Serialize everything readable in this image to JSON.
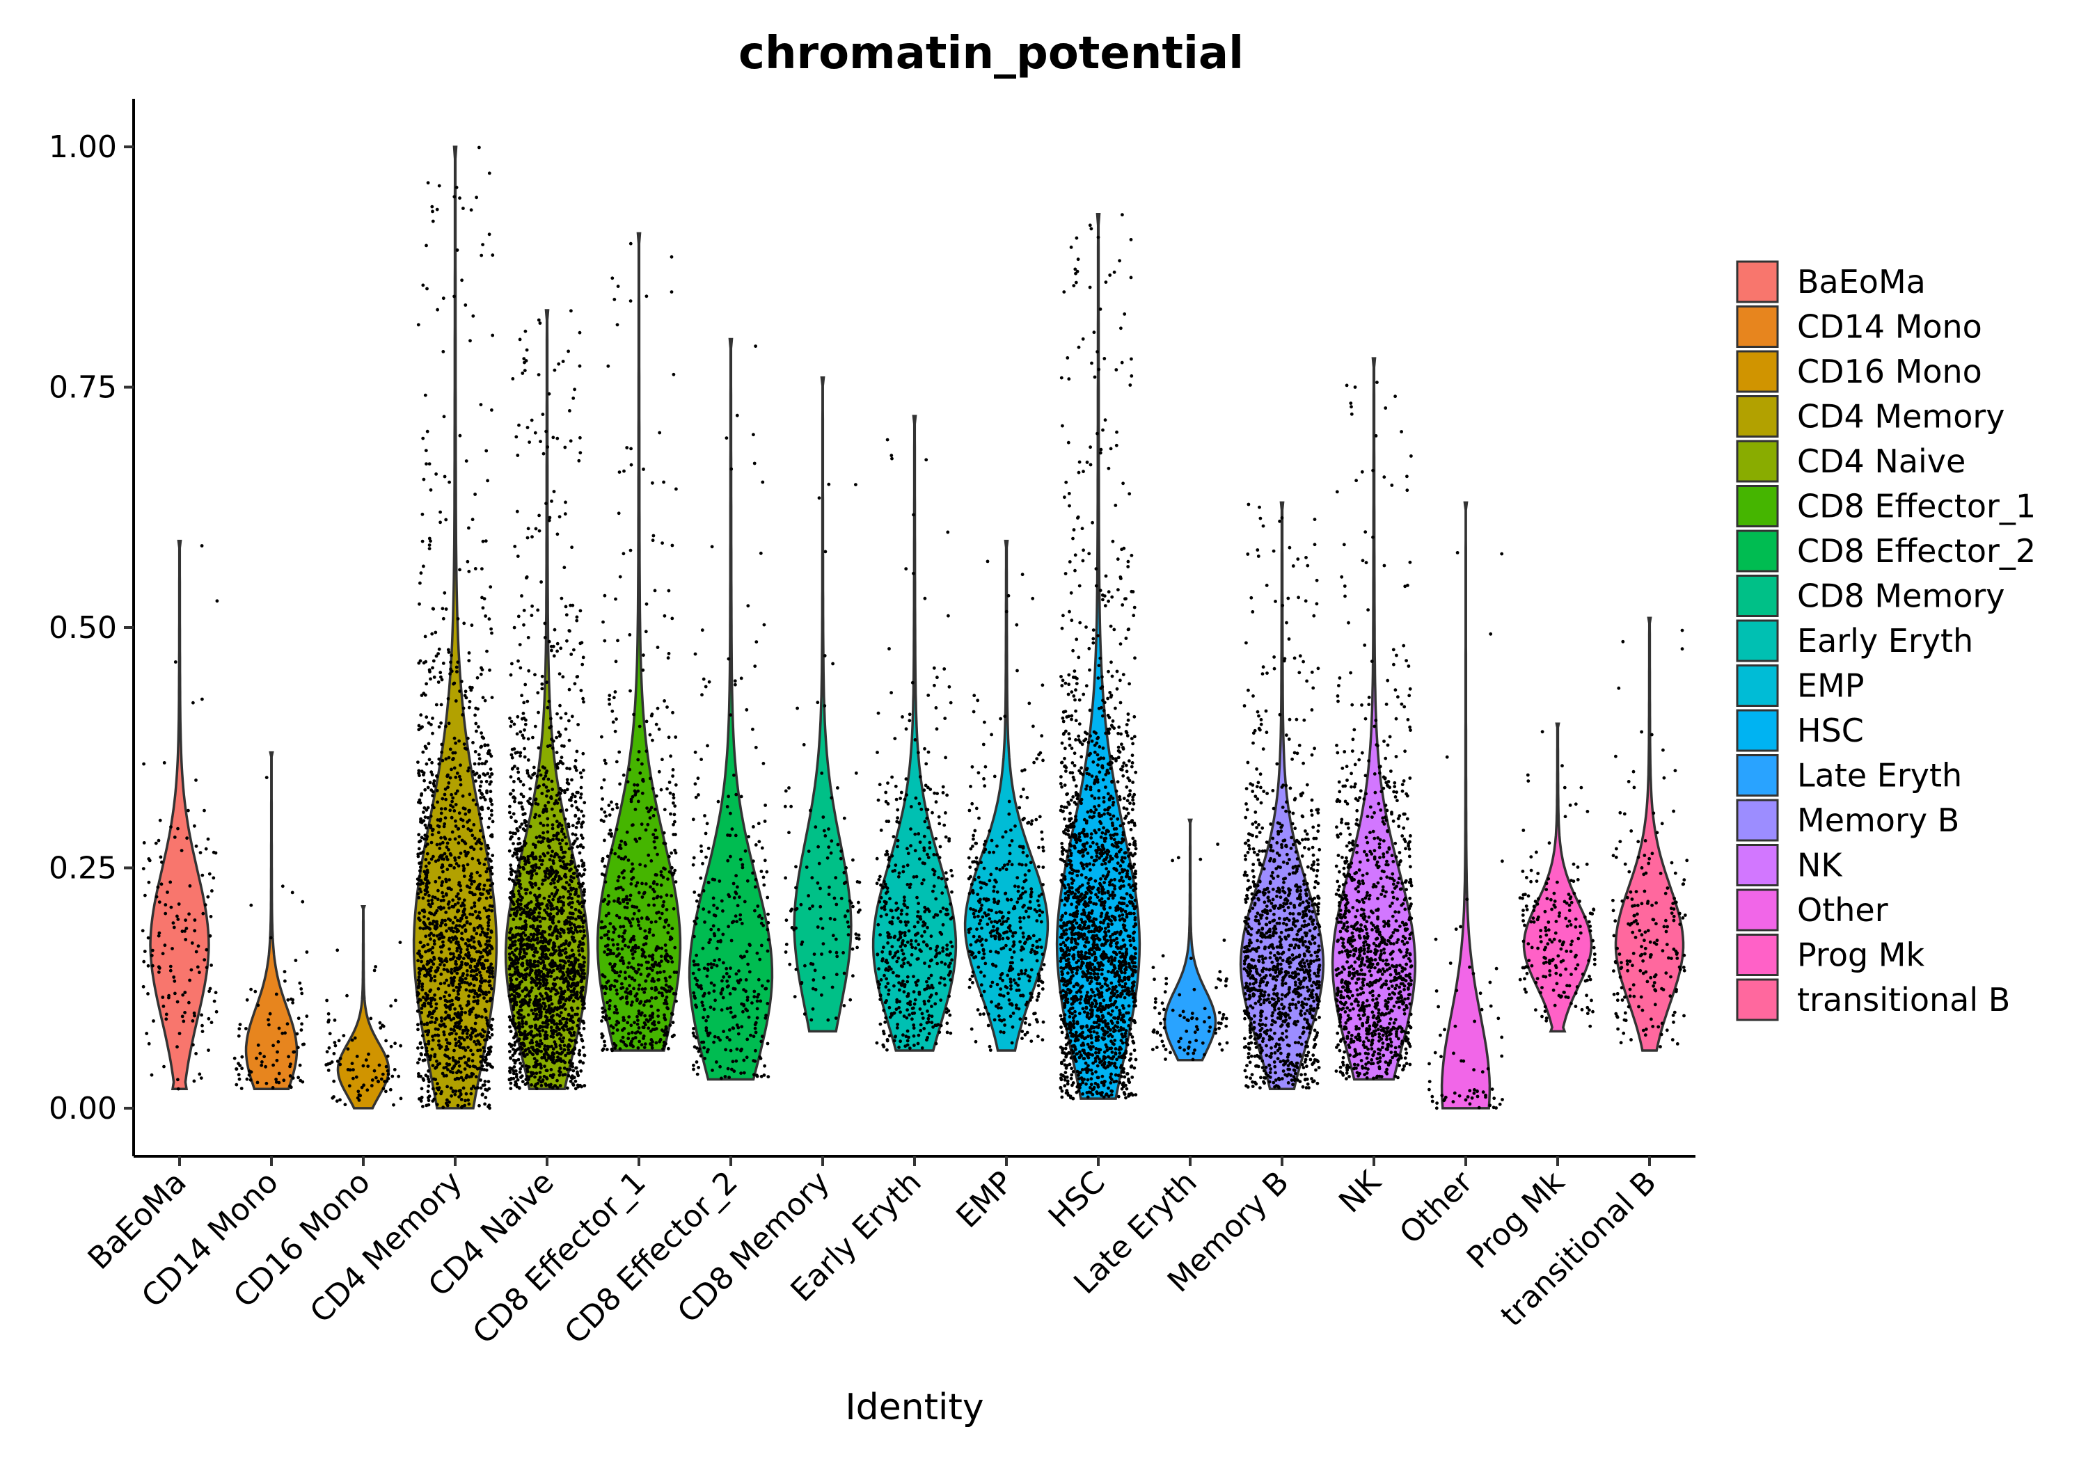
{
  "chart_data": {
    "type": "violin",
    "title": "chromatin_potential",
    "xlabel": "Identity",
    "ylabel": "",
    "ylim": [
      -0.05,
      1.05
    ],
    "yticks": [
      0.0,
      0.25,
      0.5,
      0.75,
      1.0
    ],
    "ytick_labels": [
      "0.00",
      "0.25",
      "0.50",
      "0.75",
      "1.00"
    ],
    "grid": false,
    "legend_position": "right",
    "show_jitter_points": true,
    "categories": [
      "BaEoMa",
      "CD14 Mono",
      "CD16 Mono",
      "CD4 Memory",
      "CD4 Naive",
      "CD8 Effector_1",
      "CD8 Effector_2",
      "CD8 Memory",
      "Early Eryth",
      "EMP",
      "HSC",
      "Late Eryth",
      "Memory B",
      "NK",
      "Other",
      "Prog Mk",
      "transitional B"
    ],
    "colors": [
      "#F8766D",
      "#E7851E",
      "#D09400",
      "#B2A100",
      "#89AC00",
      "#45B500",
      "#00BC51",
      "#00C087",
      "#00C0B2",
      "#00BCD6",
      "#00B3F2",
      "#29A3FF",
      "#9C8DFF",
      "#D277FF",
      "#F166E8",
      "#FF61C7",
      "#FF689E"
    ],
    "series": [
      {
        "name": "BaEoMa",
        "min": 0.02,
        "max": 0.59,
        "median": 0.17,
        "n_points": 140
      },
      {
        "name": "CD14 Mono",
        "min": 0.02,
        "max": 0.37,
        "median": 0.06,
        "n_points": 90
      },
      {
        "name": "CD16 Mono",
        "min": 0.0,
        "max": 0.21,
        "median": 0.04,
        "n_points": 90
      },
      {
        "name": "CD4 Memory",
        "min": 0.0,
        "max": 1.0,
        "median": 0.17,
        "n_points": 1500
      },
      {
        "name": "CD4 Naive",
        "min": 0.02,
        "max": 0.83,
        "median": 0.16,
        "n_points": 2000
      },
      {
        "name": "CD8 Effector_1",
        "min": 0.06,
        "max": 0.91,
        "median": 0.17,
        "n_points": 700
      },
      {
        "name": "CD8 Effector_2",
        "min": 0.03,
        "max": 0.8,
        "median": 0.14,
        "n_points": 350
      },
      {
        "name": "CD8 Memory",
        "min": 0.08,
        "max": 0.76,
        "median": 0.19,
        "n_points": 130
      },
      {
        "name": "Early Eryth",
        "min": 0.06,
        "max": 0.72,
        "median": 0.17,
        "n_points": 500
      },
      {
        "name": "EMP",
        "min": 0.06,
        "max": 0.59,
        "median": 0.19,
        "n_points": 450
      },
      {
        "name": "HSC",
        "min": 0.01,
        "max": 0.93,
        "median": 0.17,
        "n_points": 2000
      },
      {
        "name": "Late Eryth",
        "min": 0.05,
        "max": 0.3,
        "median": 0.09,
        "n_points": 90
      },
      {
        "name": "Memory B",
        "min": 0.02,
        "max": 0.63,
        "median": 0.15,
        "n_points": 1200
      },
      {
        "name": "NK",
        "min": 0.03,
        "max": 0.78,
        "median": 0.15,
        "n_points": 1100
      },
      {
        "name": "Other",
        "min": 0.0,
        "max": 0.63,
        "median": 0.02,
        "n_points": 70
      },
      {
        "name": "Prog Mk",
        "min": 0.08,
        "max": 0.4,
        "median": 0.17,
        "n_points": 200
      },
      {
        "name": "transitional B",
        "min": 0.06,
        "max": 0.51,
        "median": 0.17,
        "n_points": 200
      }
    ]
  }
}
